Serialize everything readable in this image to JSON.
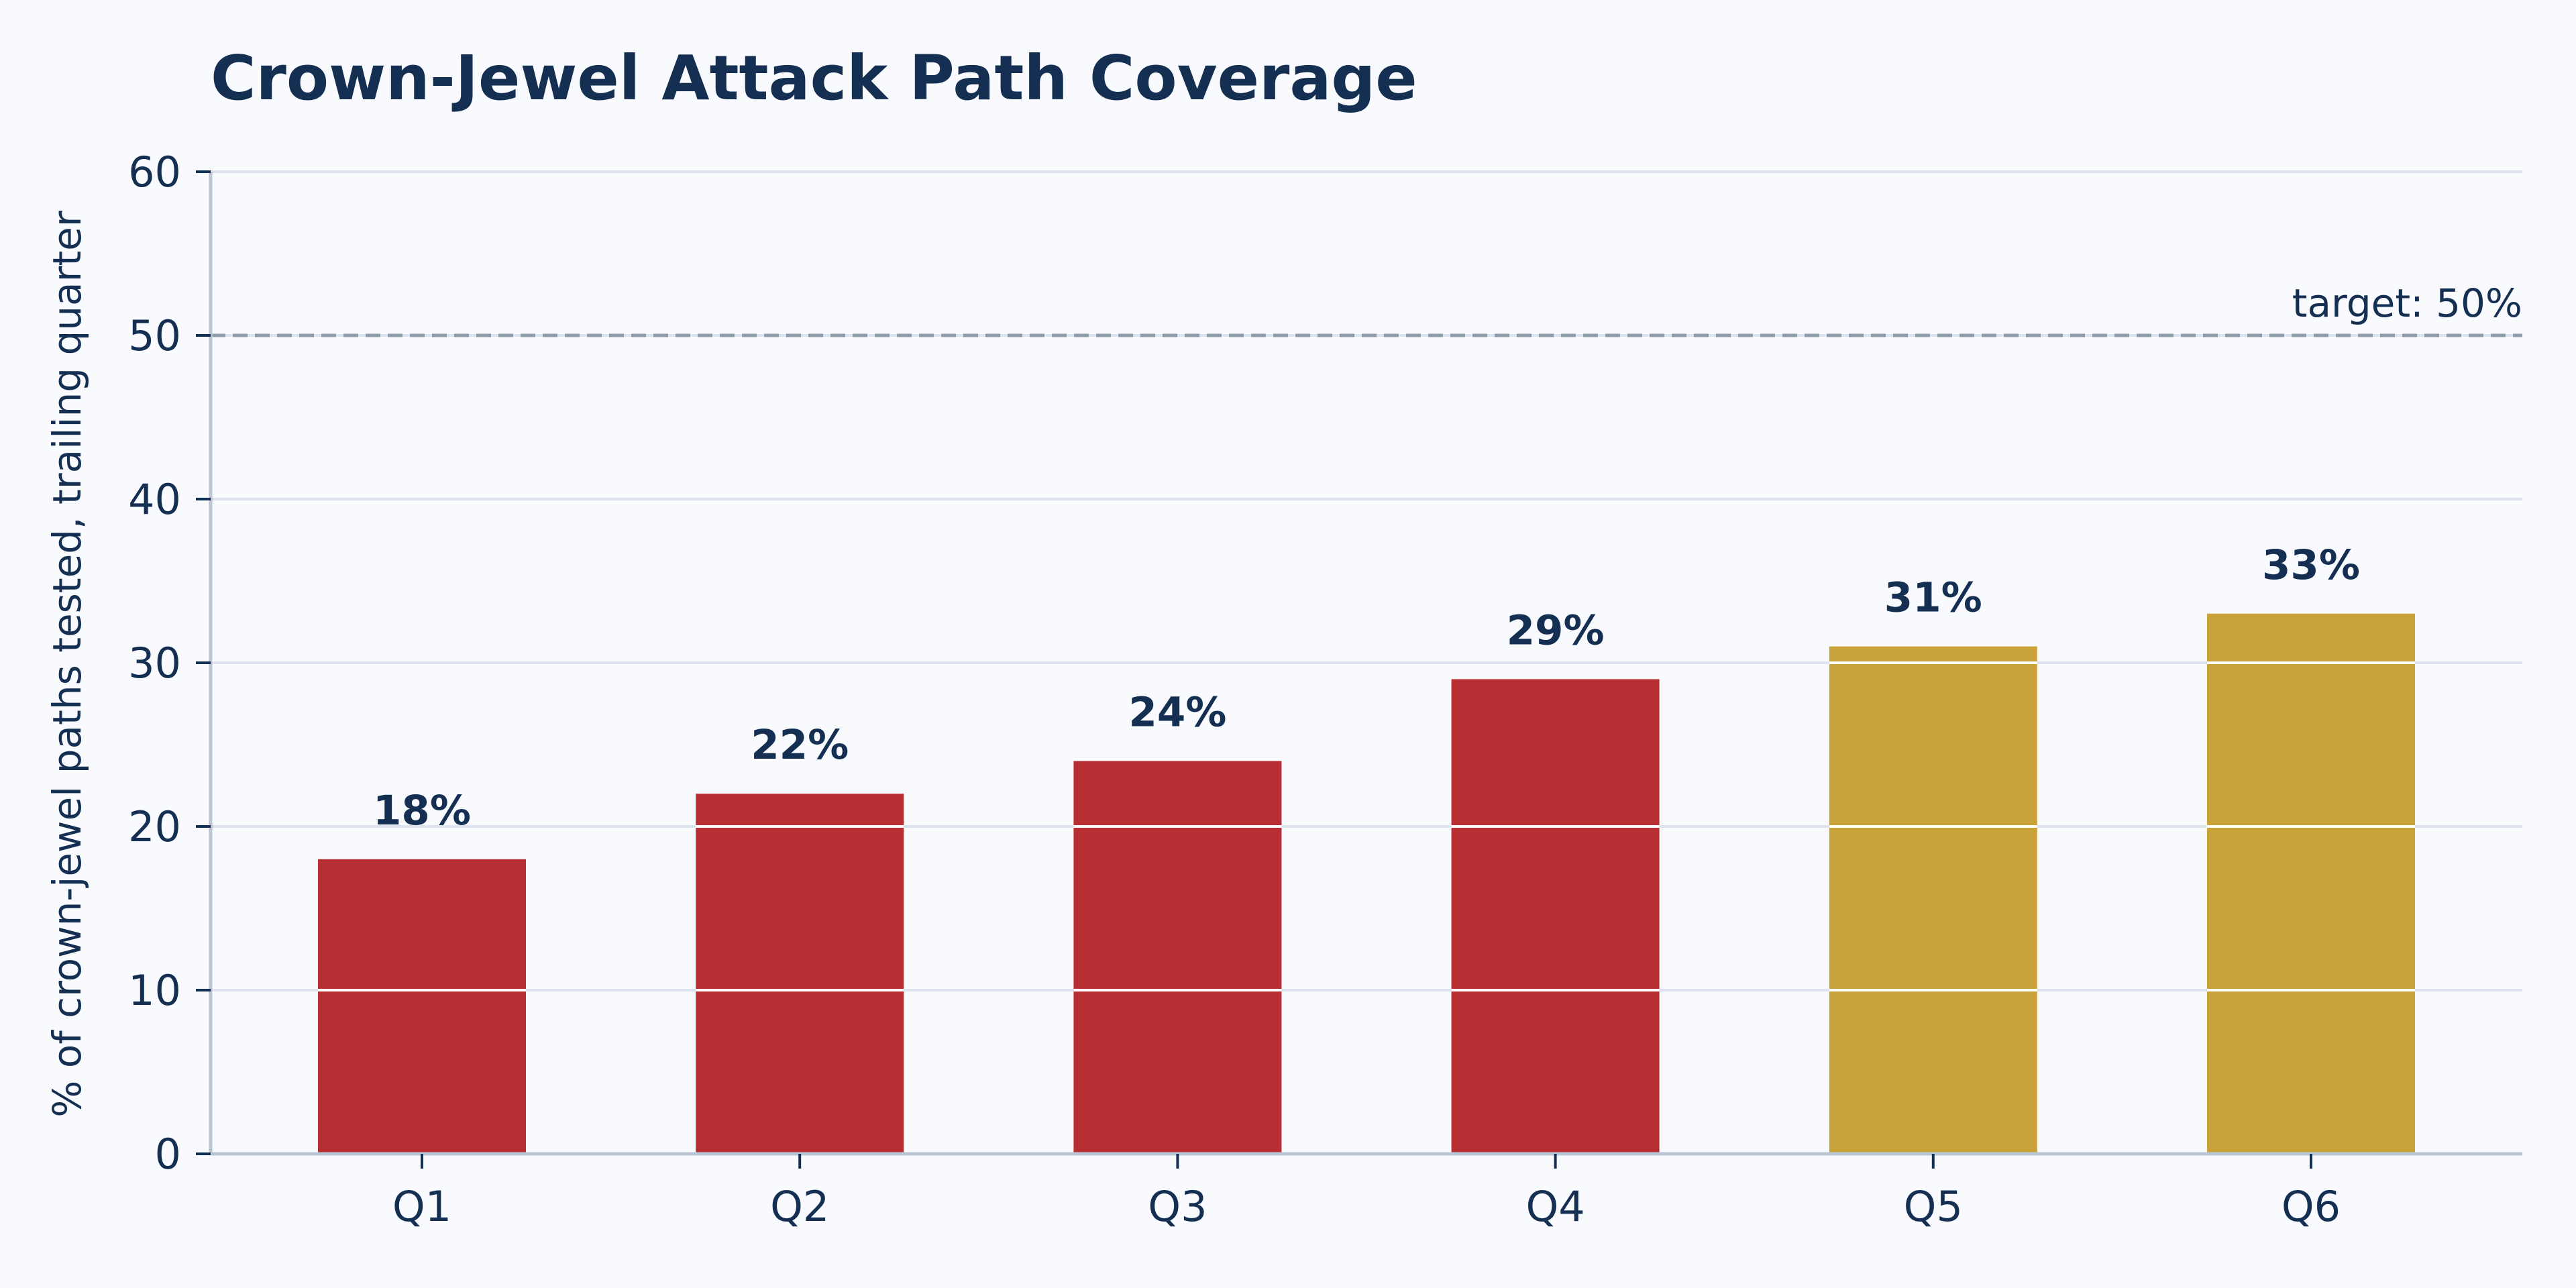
{
  "chart_data": {
    "type": "bar",
    "title": "Crown-Jewel Attack Path Coverage",
    "xlabel": "",
    "ylabel": "% of crown-jewel paths tested, trailing quarter",
    "categories": [
      "Q1",
      "Q2",
      "Q3",
      "Q4",
      "Q5",
      "Q6"
    ],
    "values": [
      18,
      22,
      24,
      29,
      31,
      33
    ],
    "data_labels": [
      "18%",
      "22%",
      "24%",
      "29%",
      "31%",
      "33%"
    ],
    "bar_colors": [
      "#b82f33",
      "#b82f33",
      "#b82f33",
      "#b82f33",
      "#c9a33a",
      "#c9a33a"
    ],
    "ylim": [
      0,
      60
    ],
    "yticks": [
      0,
      10,
      20,
      30,
      40,
      50,
      60
    ],
    "ytick_labels": [
      "0",
      "10",
      "20",
      "30",
      "40",
      "50",
      "60"
    ],
    "grid": true,
    "reference_line": {
      "value": 50,
      "label": "target: 50%",
      "style": "dashed",
      "color": "#8e9ba8"
    },
    "colors": {
      "background": "#f8fafe",
      "text": "#142f52",
      "grid": "#dde4ed",
      "axis": "#b9c6d6",
      "bar_in_grid": "#ffffff"
    }
  }
}
